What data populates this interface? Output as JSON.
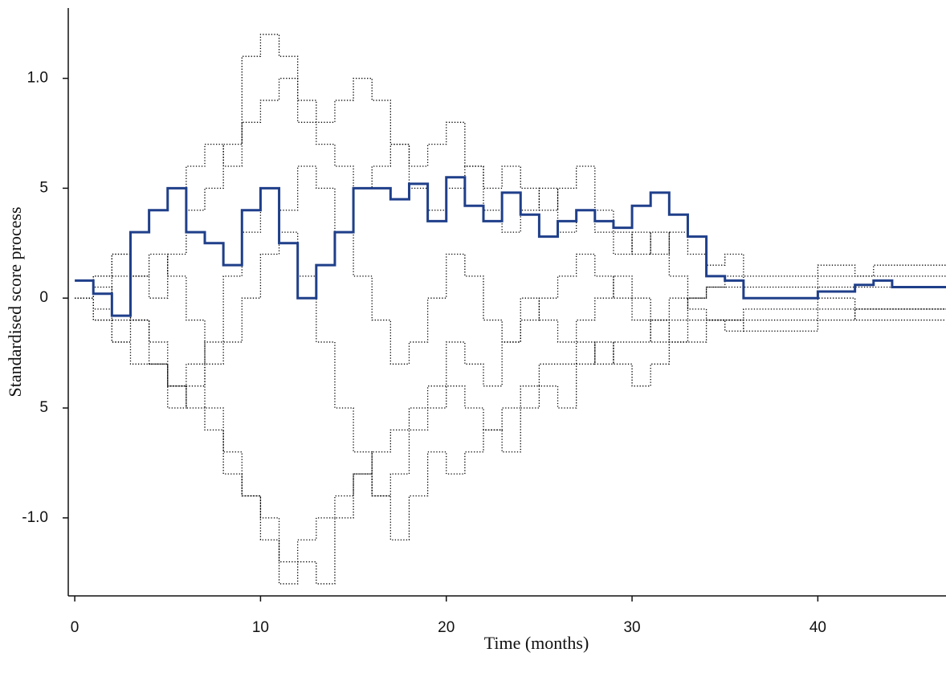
{
  "chart_data": {
    "type": "line",
    "step": true,
    "xlabel": "Time (months)",
    "ylabel": "Standardised score process",
    "xlim": [
      -0.35,
      46.9
    ],
    "ylim": [
      -1.355,
      1.32
    ],
    "xticks": [
      0,
      10,
      20,
      30,
      40
    ],
    "yticks": [
      {
        "value": 1,
        "label": "1.0"
      },
      {
        "value": 0.5,
        "label": "5"
      },
      0,
      {
        "value": -0.5,
        "label": "5"
      },
      {
        "value": -1,
        "label": "-1.0"
      }
    ],
    "x": [
      0,
      1,
      2,
      3,
      4,
      5,
      6,
      7,
      8,
      9,
      10,
      11,
      12,
      13,
      14,
      15,
      16,
      17,
      18,
      19,
      20,
      21,
      22,
      23,
      24,
      25,
      26,
      27,
      28,
      29,
      30,
      31,
      32,
      33,
      34,
      35,
      36,
      37,
      38,
      39,
      40,
      41,
      42,
      43,
      44,
      45,
      46
    ],
    "series": [
      {
        "color": "#000000",
        "style": "dotted",
        "values": [
          0,
          0.1,
          0.2,
          0.3,
          0.4,
          0.5,
          0.6,
          0.7,
          0.6,
          0.8,
          0.9,
          1.0,
          0.8,
          0.7,
          0.6,
          0.5,
          0.6,
          0.7,
          0.5,
          0.4,
          0.5,
          0.6,
          0.4,
          0.3,
          0.4,
          0.5,
          0.3,
          0.4,
          0.3,
          0.2,
          0.3,
          0.2,
          0.3,
          0.2,
          0.15,
          0.2,
          0.1,
          0.1,
          0.1,
          0.1,
          0.15,
          0.15,
          0.1,
          0.1,
          0.1,
          0.1,
          0.1
        ]
      },
      {
        "color": "#000000",
        "style": "dotted",
        "values": [
          0,
          -0.1,
          -0.2,
          -0.3,
          -0.3,
          -0.4,
          -0.5,
          -0.6,
          -0.8,
          -0.9,
          -1.0,
          -1.2,
          -1.1,
          -1.0,
          -0.9,
          -0.8,
          -0.7,
          -0.6,
          -0.5,
          -0.5,
          -0.4,
          -0.5,
          -0.6,
          -0.5,
          -0.4,
          -0.3,
          -0.3,
          -0.2,
          -0.3,
          -0.2,
          -0.2,
          -0.1,
          -0.2,
          -0.1,
          -0.1,
          -0.15,
          -0.1,
          -0.1,
          -0.1,
          -0.1,
          -0.05,
          -0.05,
          -0.1,
          -0.1,
          -0.1,
          -0.1,
          -0.1
        ]
      },
      {
        "color": "#000000",
        "style": "dotted",
        "values": [
          0,
          0.05,
          -0.1,
          0.1,
          0.2,
          0.1,
          -0.1,
          -0.3,
          -0.2,
          0.0,
          0.2,
          0.4,
          0.6,
          0.5,
          0.3,
          0.1,
          -0.1,
          -0.3,
          -0.2,
          0.0,
          0.2,
          0.1,
          -0.1,
          -0.2,
          -0.1,
          0.0,
          0.1,
          0.2,
          0.1,
          0.0,
          -0.1,
          -0.2,
          -0.1,
          0.0,
          0.05,
          0.05,
          0.0,
          0.0,
          0.0,
          0.0,
          0.05,
          0.05,
          0.05,
          0.05,
          0.05,
          0.05,
          0.05
        ]
      },
      {
        "color": "#000000",
        "style": "dotted",
        "values": [
          0,
          -0.05,
          0.1,
          -0.1,
          -0.3,
          -0.5,
          -0.4,
          -0.2,
          0.1,
          0.3,
          0.5,
          0.3,
          0.1,
          -0.2,
          -0.5,
          -0.7,
          -0.9,
          -0.8,
          -0.6,
          -0.4,
          -0.2,
          -0.3,
          -0.4,
          -0.2,
          0.0,
          -0.1,
          -0.2,
          -0.1,
          0.0,
          0.1,
          0.0,
          -0.1,
          0.0,
          -0.05,
          -0.1,
          -0.1,
          -0.15,
          -0.15,
          -0.15,
          -0.15,
          -0.1,
          -0.1,
          -0.05,
          -0.05,
          -0.05,
          -0.05,
          -0.05
        ]
      },
      {
        "color": "#000000",
        "style": "dotted",
        "values": [
          0,
          0.1,
          0.2,
          0.1,
          0.0,
          0.2,
          0.4,
          0.5,
          0.7,
          1.1,
          1.2,
          1.1,
          0.9,
          0.8,
          0.9,
          1.0,
          0.9,
          0.7,
          0.6,
          0.7,
          0.8,
          0.6,
          0.5,
          0.6,
          0.5,
          0.4,
          0.5,
          0.6,
          0.4,
          0.3,
          0.2,
          0.3,
          0.1,
          0.0,
          0.05,
          0.1,
          0.05,
          0.05,
          0.05,
          0.05,
          0.1,
          0.1,
          0.1,
          0.15,
          0.15,
          0.15,
          0.15
        ]
      },
      {
        "color": "#000000",
        "style": "dotted",
        "values": [
          0,
          -0.1,
          -0.2,
          -0.1,
          -0.2,
          -0.4,
          -0.3,
          -0.5,
          -0.7,
          -0.9,
          -1.1,
          -1.3,
          -1.2,
          -1.3,
          -1.0,
          -0.8,
          -0.9,
          -1.1,
          -0.9,
          -0.7,
          -0.8,
          -0.7,
          -0.6,
          -0.7,
          -0.5,
          -0.4,
          -0.5,
          -0.3,
          -0.2,
          -0.3,
          -0.4,
          -0.3,
          -0.2,
          -0.2,
          -0.1,
          -0.1,
          -0.05,
          -0.05,
          -0.05,
          -0.05,
          0.0,
          0.0,
          -0.05,
          -0.05,
          -0.05,
          -0.05,
          -0.05
        ]
      },
      {
        "color": "#1f3f8a",
        "style": "solid",
        "values": [
          0.08,
          0.02,
          -0.08,
          0.3,
          0.4,
          0.5,
          0.3,
          0.25,
          0.15,
          0.4,
          0.5,
          0.25,
          0.0,
          0.15,
          0.3,
          0.5,
          0.5,
          0.45,
          0.52,
          0.35,
          0.55,
          0.42,
          0.35,
          0.48,
          0.38,
          0.28,
          0.35,
          0.4,
          0.35,
          0.32,
          0.42,
          0.48,
          0.38,
          0.28,
          0.1,
          0.08,
          0.0,
          0.0,
          0.0,
          0.0,
          0.03,
          0.03,
          0.06,
          0.08,
          0.05,
          0.05,
          0.05
        ]
      }
    ]
  }
}
